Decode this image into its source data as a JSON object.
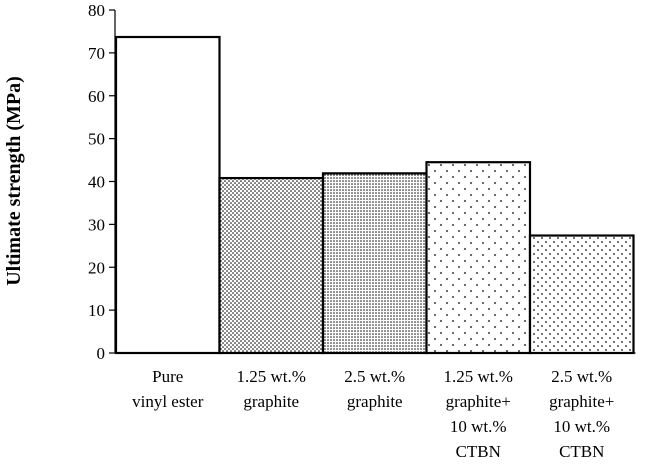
{
  "chart_data": {
    "type": "bar",
    "title": "",
    "xlabel": "",
    "ylabel": "Ultimate strength (MPa)",
    "ylim": [
      0,
      80
    ],
    "yticks": [
      0,
      10,
      20,
      30,
      40,
      50,
      60,
      70,
      80
    ],
    "grid": false,
    "legend": "none",
    "categories": [
      [
        "Pure",
        "vinyl ester"
      ],
      [
        "1.25 wt.%",
        "graphite"
      ],
      [
        "2.5 wt.%",
        "graphite"
      ],
      [
        "1.25 wt.%",
        "graphite+",
        "10 wt.%",
        "CTBN"
      ],
      [
        "2.5 wt.%",
        "graphite+",
        "10 wt.%",
        "CTBN"
      ]
    ],
    "values": [
      73.7,
      40.8,
      41.9,
      44.5,
      27.4
    ],
    "bar_fills": [
      "blank",
      "dense-dots",
      "denser-dots",
      "sparse-dots",
      "medium-dots"
    ],
    "bar_color": "#000000",
    "background": "#ffffff"
  }
}
